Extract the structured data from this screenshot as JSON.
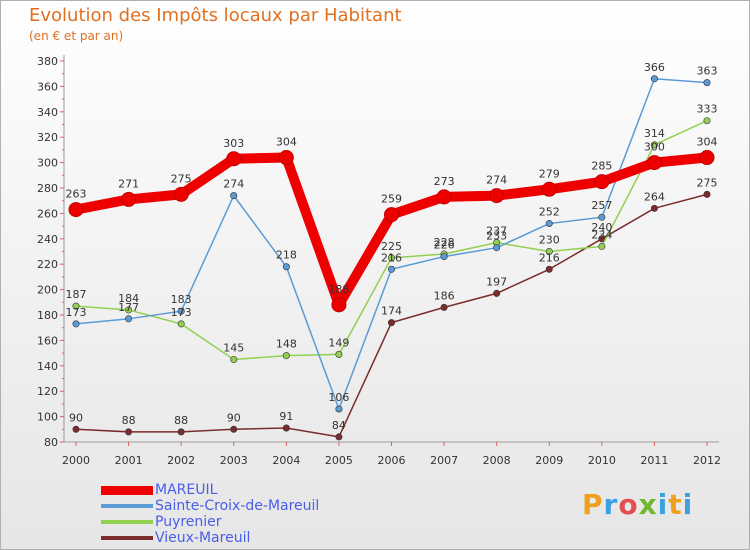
{
  "chart_data": {
    "type": "line",
    "title": "Evolution des Impôts locaux par Habitant",
    "subtitle": "(en € et par an)",
    "xlabel": "",
    "ylabel": "",
    "categories": [
      "2000",
      "2001",
      "2002",
      "2003",
      "2004",
      "2005",
      "2006",
      "2007",
      "2008",
      "2009",
      "2010",
      "2011",
      "2012"
    ],
    "ylim": [
      80,
      380
    ],
    "yticks": [
      80,
      100,
      120,
      140,
      160,
      180,
      200,
      220,
      240,
      260,
      280,
      300,
      320,
      340,
      360,
      380
    ],
    "grid": false,
    "legend_position": "bottom-left",
    "series": [
      {
        "name": "MAREUIL",
        "color": "#ee0000",
        "values": [
          263,
          271,
          275,
          303,
          304,
          188,
          259,
          273,
          274,
          279,
          285,
          300,
          304
        ]
      },
      {
        "name": "Sainte-Croix-de-Mareuil",
        "color": "#5b9bd5",
        "values": [
          173,
          177,
          183,
          274,
          218,
          106,
          216,
          226,
          233,
          252,
          257,
          366,
          363
        ]
      },
      {
        "name": "Puyrenier",
        "color": "#92d050",
        "values": [
          187,
          184,
          173,
          145,
          148,
          149,
          225,
          228,
          237,
          230,
          234,
          314,
          333
        ]
      },
      {
        "name": "Vieux-Mareuil",
        "color": "#7b2c2c",
        "values": [
          90,
          88,
          88,
          90,
          91,
          84,
          174,
          186,
          197,
          216,
          240,
          264,
          275
        ]
      }
    ]
  },
  "brand": {
    "letters": [
      "P",
      "r",
      "o",
      "x",
      "i",
      "t",
      "i"
    ]
  }
}
